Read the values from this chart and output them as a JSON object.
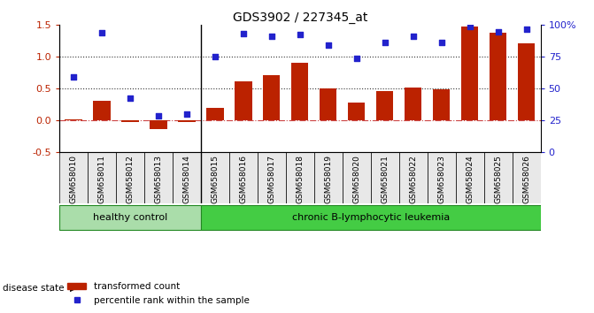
{
  "title": "GDS3902 / 227345_at",
  "samples": [
    "GSM658010",
    "GSM658011",
    "GSM658012",
    "GSM658013",
    "GSM658014",
    "GSM658015",
    "GSM658016",
    "GSM658017",
    "GSM658018",
    "GSM658019",
    "GSM658020",
    "GSM658021",
    "GSM658022",
    "GSM658023",
    "GSM658024",
    "GSM658025",
    "GSM658026"
  ],
  "bar_values": [
    0.02,
    0.31,
    -0.02,
    -0.13,
    -0.02,
    0.2,
    0.62,
    0.71,
    0.91,
    0.5,
    0.28,
    0.46,
    0.52,
    0.49,
    1.47,
    1.38,
    1.21
  ],
  "scatter_values": [
    0.68,
    1.38,
    0.35,
    0.08,
    0.1,
    1.0,
    1.37,
    1.33,
    1.35,
    1.19,
    0.97,
    1.22,
    1.33,
    1.22,
    1.47,
    1.4,
    1.43
  ],
  "bar_color": "#bb2200",
  "scatter_color": "#2222cc",
  "ylim_left": [
    -0.5,
    1.5
  ],
  "ylim_right": [
    0,
    100
  ],
  "yticks_left": [
    -0.5,
    0.0,
    0.5,
    1.0,
    1.5
  ],
  "yticks_right": [
    0,
    25,
    50,
    75,
    100
  ],
  "ytick_labels_right": [
    "0",
    "25",
    "50",
    "75",
    "100%"
  ],
  "hlines": [
    0.0,
    0.5,
    1.0
  ],
  "hline_styles": [
    "dashdot",
    "dotted",
    "dotted"
  ],
  "hline_colors": [
    "#cc4444",
    "#333333",
    "#333333"
  ],
  "group_labels": [
    "healthy control",
    "chronic B-lymphocytic leukemia"
  ],
  "group_colors": [
    "#aaddaa",
    "#44cc44"
  ],
  "disease_state_label": "disease state",
  "legend_bar_label": "transformed count",
  "legend_scatter_label": "percentile rank within the sample",
  "n_healthy": 5,
  "n_total": 17
}
